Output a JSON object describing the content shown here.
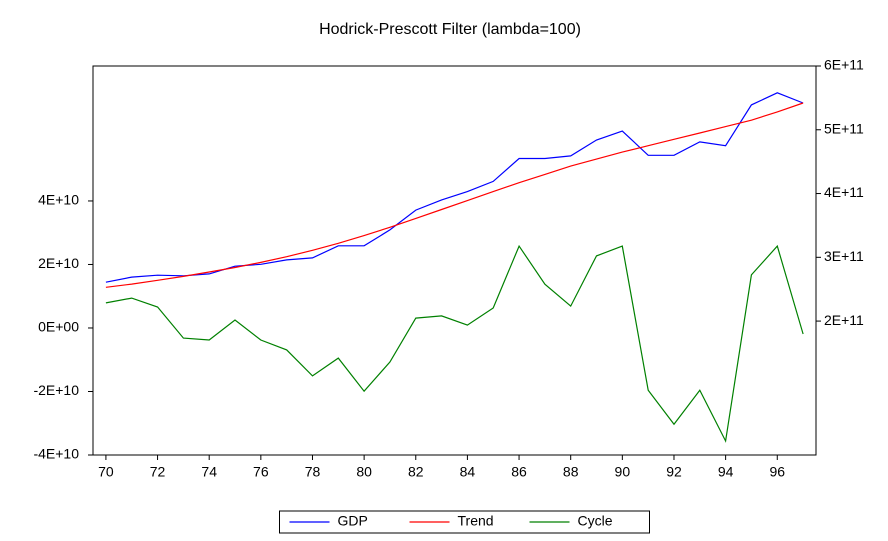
{
  "chart_data": {
    "type": "line",
    "title": "Hodrick-Prescott Filter (lambda=100)",
    "x": [
      70,
      71,
      72,
      73,
      74,
      75,
      76,
      77,
      78,
      79,
      80,
      81,
      82,
      83,
      84,
      85,
      86,
      87,
      88,
      89,
      90,
      91,
      92,
      93,
      94,
      95,
      96,
      97
    ],
    "xlim": [
      69.5,
      97.5
    ],
    "xticks": [
      70,
      72,
      74,
      76,
      78,
      80,
      82,
      84,
      86,
      88,
      90,
      92,
      94,
      96
    ],
    "ylim": [
      -40000000000.0,
      82500000000.0
    ],
    "yticks": [
      {
        "value": -40000000000.0,
        "label": "-4E+10"
      },
      {
        "value": -20000000000.0,
        "label": "-2E+10"
      },
      {
        "value": 0,
        "label": "0E+00"
      },
      {
        "value": 20000000000.0,
        "label": "2E+10"
      },
      {
        "value": 40000000000.0,
        "label": "4E+10"
      }
    ],
    "y2lim": [
      -10000000000.0,
      600000000000.0
    ],
    "y2ticks": [
      {
        "value": 200000000000.0,
        "label": "2E+11"
      },
      {
        "value": 300000000000.0,
        "label": "3E+11"
      },
      {
        "value": 400000000000.0,
        "label": "4E+11"
      },
      {
        "value": 500000000000.0,
        "label": "5E+11"
      },
      {
        "value": 600000000000.0,
        "label": "6E+11"
      }
    ],
    "legend": "bottom",
    "series": [
      {
        "name": "GDP",
        "color": "#0000ff",
        "axis": "y2",
        "values": [
          261000000000.0,
          269000000000.0,
          272000000000.0,
          271000000000.0,
          274000000000.0,
          286000000000.0,
          289000000000.0,
          296000000000.0,
          299000000000.0,
          318000000000.0,
          318000000000.0,
          343000000000.0,
          374000000000.0,
          390000000000.0,
          403000000000.0,
          419000000000.0,
          455000000000.0,
          455000000000.0,
          459000000000.0,
          484000000000.0,
          498000000000.0,
          460000000000.0,
          460000000000.0,
          481000000000.0,
          475000000000.0,
          539000000000.0,
          558000000000.0,
          542000000000.0
        ]
      },
      {
        "name": "Trend",
        "color": "#ff0000",
        "axis": "y2",
        "values": [
          253000000000.0,
          258000000000.0,
          264000000000.0,
          270000000000.0,
          277000000000.0,
          284000000000.0,
          292000000000.0,
          301000000000.0,
          311000000000.0,
          322000000000.0,
          334000000000.0,
          347000000000.0,
          361000000000.0,
          375000000000.0,
          389000000000.0,
          403000000000.0,
          417000000000.0,
          430000000000.0,
          443000000000.0,
          454000000000.0,
          465000000000.0,
          475000000000.0,
          485000000000.0,
          495000000000.0,
          505000000000.0,
          515000000000.0,
          528000000000.0,
          542000000000.0
        ]
      },
      {
        "name": "Cycle",
        "color": "#008000",
        "values": [
          7900000000.0,
          9400000000.0,
          6600000000.0,
          -3200000000.0,
          -3800000000.0,
          2500000000.0,
          -3800000000.0,
          -6900000000.0,
          -15100000000.0,
          -9500000000.0,
          -19900000000.0,
          -10700000000.0,
          3100000000.0,
          3800000000.0,
          900000000.0,
          6300000000.0,
          25800000000.0,
          13800000000.0,
          6900000000.0,
          22700000000.0,
          25800000000.0,
          -19600000000.0,
          -30300000000.0,
          -19600000000.0,
          -35600000000.0,
          16700000000.0,
          25800000000.0,
          -1900000000.0
        ]
      }
    ]
  }
}
